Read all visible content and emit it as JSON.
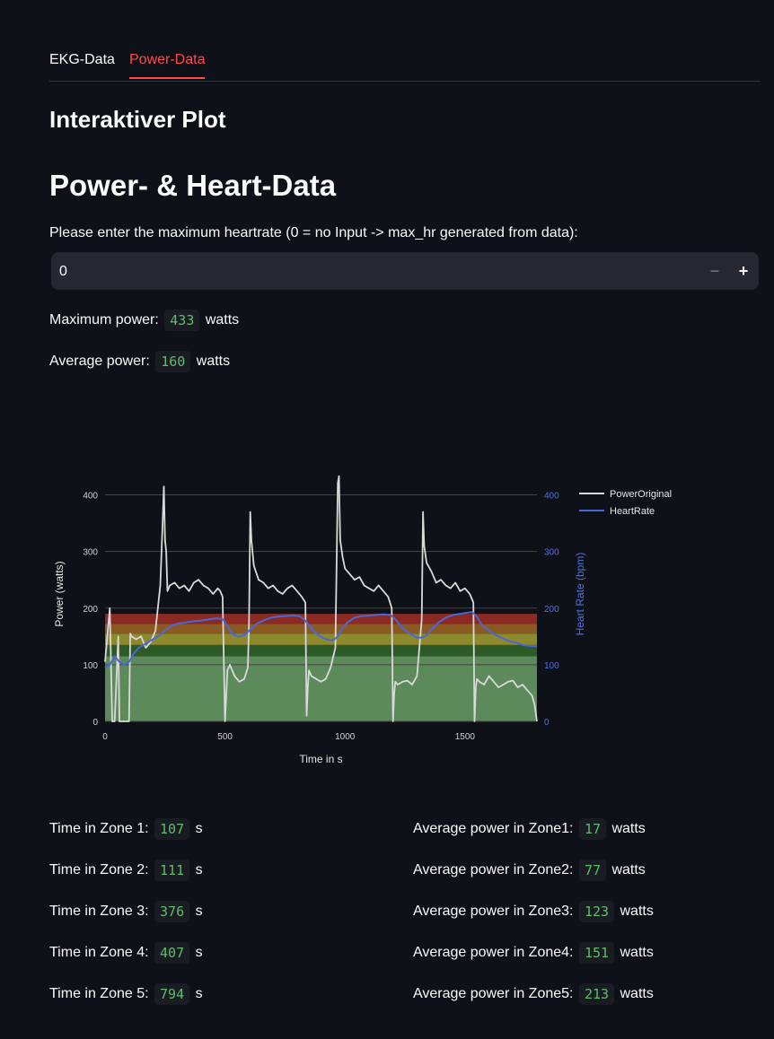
{
  "tabs": [
    {
      "label": "EKG-Data",
      "active": false
    },
    {
      "label": "Power-Data",
      "active": true
    }
  ],
  "subheader": "Interaktiver Plot",
  "header": "Power- & Heart-Data",
  "max_hr_input": {
    "label": "Please enter the maximum heartrate (0 = no Input -> max_hr generated from data):",
    "value": "0",
    "minus": "−",
    "plus": "+"
  },
  "summary": {
    "max_power": {
      "label": "Maximum power:",
      "value": "433",
      "unit": "watts"
    },
    "avg_power": {
      "label": "Average power:",
      "value": "160",
      "unit": "watts"
    }
  },
  "zones_time": [
    {
      "label": "Time in Zone 1:",
      "value": "107",
      "unit": "s"
    },
    {
      "label": "Time in Zone 2:",
      "value": "111",
      "unit": "s"
    },
    {
      "label": "Time in Zone 3:",
      "value": "376",
      "unit": "s"
    },
    {
      "label": "Time in Zone 4:",
      "value": "407",
      "unit": "s"
    },
    {
      "label": "Time in Zone 5:",
      "value": "794",
      "unit": "s"
    }
  ],
  "zones_power": [
    {
      "label": "Average power in Zone1:",
      "value": "17",
      "unit": "watts"
    },
    {
      "label": "Average power in Zone2:",
      "value": "77",
      "unit": "watts"
    },
    {
      "label": "Average power in Zone3:",
      "value": "123",
      "unit": "watts"
    },
    {
      "label": "Average power in Zone4:",
      "value": "151",
      "unit": "watts"
    },
    {
      "label": "Average power in Zone5:",
      "value": "213",
      "unit": "watts"
    }
  ],
  "colors": {
    "accent": "#ff4b4b",
    "power_line": "#d9d9d9",
    "hr_line": "#4a67d6",
    "code_text": "#5ebd6a"
  },
  "chart_data": {
    "type": "line",
    "xlabel": "Time in s",
    "ylabel": "Power (watts)",
    "y2label": "Heart Rate (bpm)",
    "xlim": [
      0,
      1800
    ],
    "ylim": [
      0,
      450
    ],
    "y2lim": [
      0,
      450
    ],
    "xticks": [
      0,
      500,
      1000,
      1500
    ],
    "yticks": [
      0,
      100,
      200,
      300,
      400
    ],
    "y2ticks": [
      0,
      100,
      200,
      300,
      400
    ],
    "legend_position": "top-right",
    "zones": [
      {
        "from": 0,
        "to": 115,
        "color": "#5c8a5a"
      },
      {
        "from": 115,
        "to": 135,
        "color": "#2d5a27"
      },
      {
        "from": 135,
        "to": 155,
        "color": "#8d8a2d"
      },
      {
        "from": 155,
        "to": 172,
        "color": "#8a5a22"
      },
      {
        "from": 172,
        "to": 190,
        "color": "#8a2a22"
      }
    ],
    "series": [
      {
        "name": "PowerOriginal",
        "color": "#d9d9d9",
        "x": [
          0,
          20,
          30,
          40,
          55,
          60,
          80,
          100,
          105,
          110,
          130,
          150,
          170,
          190,
          210,
          230,
          240,
          245,
          250,
          255,
          260,
          270,
          290,
          310,
          330,
          350,
          370,
          390,
          410,
          430,
          450,
          470,
          480,
          490,
          500,
          510,
          520,
          540,
          560,
          580,
          595,
          600,
          605,
          610,
          620,
          640,
          660,
          680,
          700,
          720,
          740,
          760,
          780,
          800,
          820,
          835,
          840,
          845,
          850,
          860,
          880,
          900,
          920,
          940,
          960,
          970,
          975,
          980,
          990,
          1000,
          1020,
          1040,
          1060,
          1080,
          1100,
          1120,
          1140,
          1160,
          1180,
          1195,
          1200,
          1205,
          1210,
          1220,
          1240,
          1260,
          1280,
          1300,
          1320,
          1325,
          1330,
          1340,
          1360,
          1380,
          1400,
          1420,
          1440,
          1460,
          1480,
          1500,
          1520,
          1535,
          1540,
          1545,
          1550,
          1560,
          1580,
          1600,
          1620,
          1640,
          1660,
          1680,
          1700,
          1720,
          1740,
          1760,
          1780,
          1790,
          1800
        ],
        "values": [
          105,
          200,
          0,
          0,
          150,
          0,
          0,
          0,
          155,
          150,
          145,
          150,
          130,
          140,
          160,
          240,
          350,
          415,
          320,
          300,
          230,
          240,
          245,
          235,
          240,
          230,
          245,
          250,
          240,
          235,
          225,
          235,
          230,
          220,
          0,
          90,
          100,
          80,
          70,
          75,
          95,
          170,
          370,
          320,
          275,
          250,
          245,
          235,
          240,
          230,
          225,
          235,
          240,
          230,
          220,
          210,
          10,
          60,
          90,
          80,
          75,
          70,
          75,
          95,
          130,
          420,
          433,
          320,
          290,
          270,
          260,
          250,
          255,
          240,
          235,
          230,
          240,
          230,
          220,
          200,
          0,
          50,
          70,
          65,
          70,
          72,
          65,
          80,
          180,
          370,
          310,
          280,
          265,
          245,
          250,
          240,
          235,
          245,
          230,
          235,
          225,
          210,
          0,
          60,
          75,
          70,
          65,
          80,
          70,
          60,
          65,
          70,
          72,
          60,
          65,
          55,
          45,
          30,
          0
        ]
      },
      {
        "name": "HeartRate",
        "color": "#4a67d6",
        "x": [
          0,
          20,
          40,
          60,
          80,
          100,
          120,
          140,
          160,
          180,
          200,
          220,
          250,
          280,
          310,
          340,
          370,
          400,
          430,
          460,
          490,
          500,
          520,
          540,
          560,
          580,
          600,
          630,
          660,
          690,
          720,
          750,
          780,
          810,
          830,
          850,
          870,
          890,
          910,
          930,
          950,
          970,
          990,
          1010,
          1040,
          1070,
          1100,
          1130,
          1160,
          1190,
          1210,
          1240,
          1270,
          1300,
          1320,
          1340,
          1360,
          1390,
          1420,
          1450,
          1480,
          1510,
          1530,
          1550,
          1570,
          1600,
          1630,
          1660,
          1690,
          1720,
          1750,
          1780,
          1800
        ],
        "values": [
          95,
          100,
          115,
          105,
          100,
          105,
          120,
          130,
          135,
          140,
          145,
          150,
          160,
          170,
          173,
          175,
          177,
          178,
          180,
          182,
          181,
          175,
          160,
          152,
          150,
          152,
          160,
          172,
          178,
          183,
          185,
          186,
          187,
          186,
          180,
          170,
          160,
          152,
          147,
          144,
          143,
          150,
          165,
          175,
          183,
          186,
          187,
          188,
          189,
          188,
          180,
          165,
          155,
          148,
          148,
          152,
          162,
          175,
          183,
          188,
          190,
          192,
          193,
          185,
          170,
          160,
          152,
          146,
          141,
          138,
          134,
          133,
          133
        ]
      }
    ]
  }
}
